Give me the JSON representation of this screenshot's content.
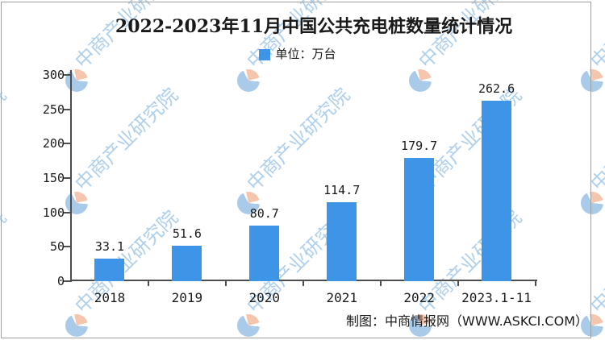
{
  "title": "2022-2023年11月中国公共充电桩数量统计情况",
  "legend": {
    "label": "单位：万台",
    "color": "#3E95E7"
  },
  "footer": "制图：中商情报网（WWW.ASKCI.COM）",
  "watermark": {
    "text": "中商产业研究院",
    "text_color": "#AED0EC",
    "logo_salmon": "#F5C5AE",
    "logo_blue": "#A9CBE9"
  },
  "chart_data": {
    "type": "bar",
    "title": "2022-2023年11月中国公共充电桩数量统计情况",
    "unit_label": "单位：万台",
    "categories": [
      "2018",
      "2019",
      "2020",
      "2021",
      "2022",
      "2023.1-11"
    ],
    "values": [
      33.1,
      51.6,
      80.7,
      114.7,
      179.7,
      262.6
    ],
    "ylim": [
      0,
      300
    ],
    "yticks": [
      0,
      50,
      100,
      150,
      200,
      250,
      300
    ],
    "bar_color": "#3E95E7",
    "grid": false,
    "legend_position": "top-center",
    "source_note": "制图：中商情报网（WWW.ASKCI.COM）"
  }
}
